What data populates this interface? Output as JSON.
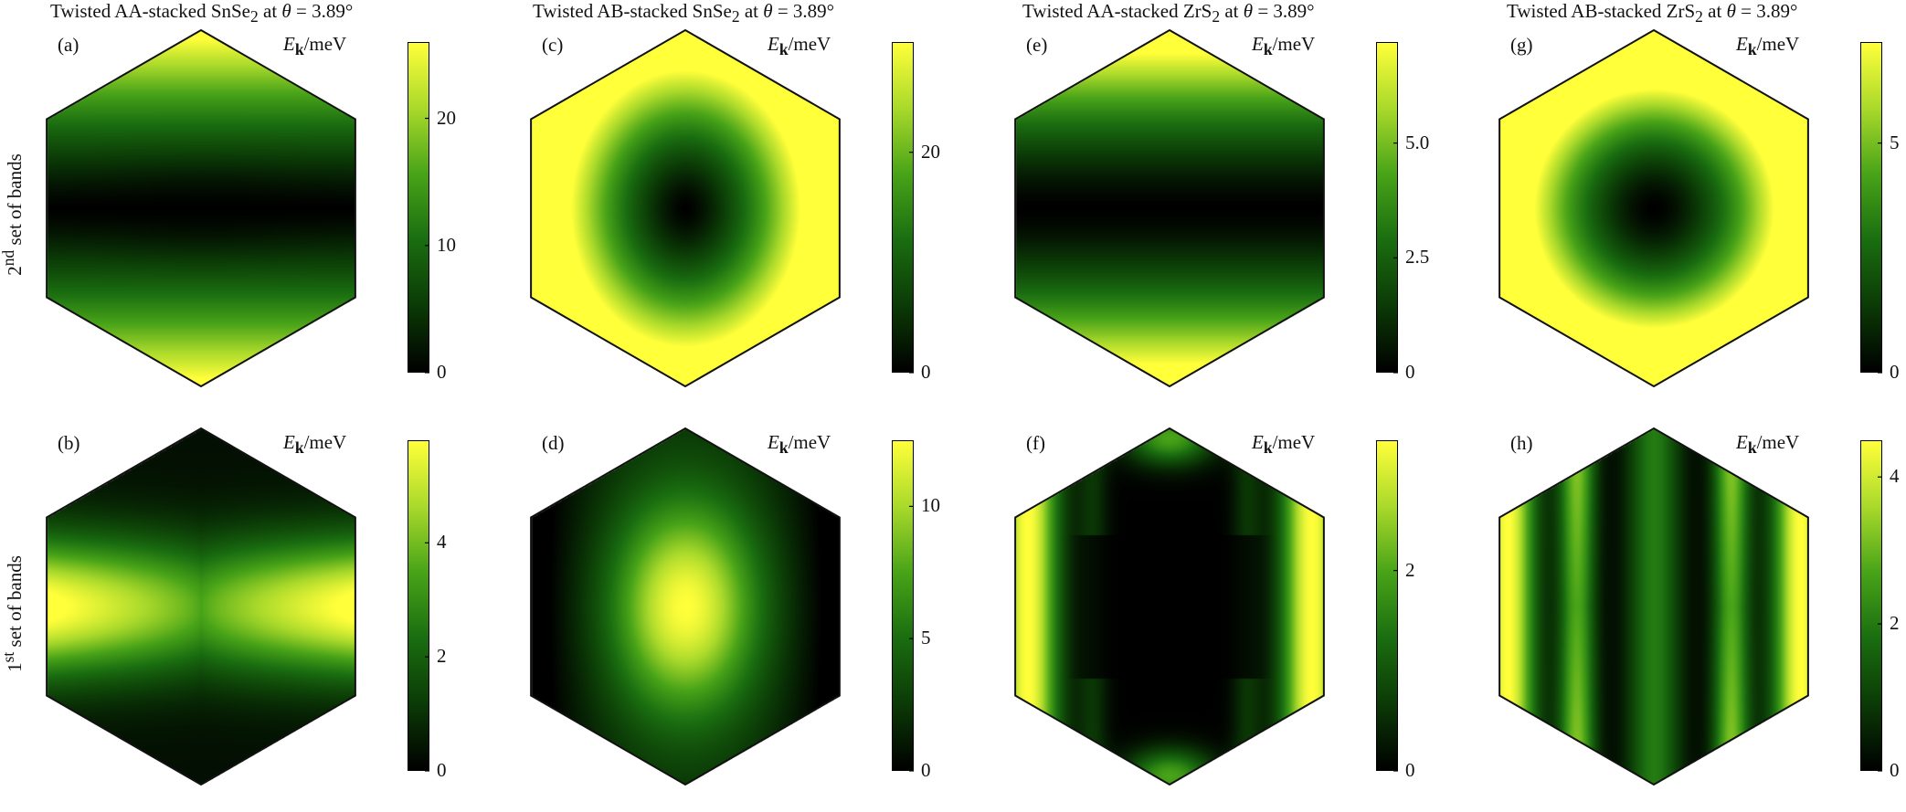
{
  "colormap": [
    "#000000",
    "#0b3a06",
    "#1a6d10",
    "#48a318",
    "#a9d92b",
    "#ffff3a"
  ],
  "col_titles": [
    {
      "pre": "Twisted AA-stacked SnSe",
      "sub": "2",
      "post": " at ",
      "theta": "θ",
      "eq": " = 3.89°"
    },
    {
      "pre": "Twisted AB-stacked SnSe",
      "sub": "2",
      "post": " at ",
      "theta": "θ",
      "eq": " = 3.89°"
    },
    {
      "pre": "Twisted AA-stacked ZrS",
      "sub": "2",
      "post": " at ",
      "theta": "θ",
      "eq": " = 3.89°"
    },
    {
      "pre": "Twisted AB-stacked ZrS",
      "sub": "2",
      "post": " at ",
      "theta": "θ",
      "eq": " = 3.89°"
    }
  ],
  "row_labels": [
    {
      "num": "2",
      "sup": "nd",
      "text": " set of bands"
    },
    {
      "num": "1",
      "sup": "st",
      "text": " set of bands"
    }
  ],
  "colorbar_title": {
    "var": "E",
    "sub": "k",
    "unit": "/meV"
  },
  "chart_data": [
    {
      "type": "heatmap",
      "panel": "(a)",
      "pattern": "a",
      "cmin": 0,
      "cmax": 26,
      "ticks": [
        {
          "value": 0,
          "label": "0"
        },
        {
          "value": 10,
          "label": "10"
        },
        {
          "value": 20,
          "label": "20"
        }
      ]
    },
    {
      "type": "heatmap",
      "panel": "(b)",
      "pattern": "b",
      "cmin": 0,
      "cmax": 5.8,
      "ticks": [
        {
          "value": 0,
          "label": "0"
        },
        {
          "value": 2,
          "label": "2"
        },
        {
          "value": 4,
          "label": "4"
        }
      ]
    },
    {
      "type": "heatmap",
      "panel": "(c)",
      "pattern": "c",
      "cmin": 0,
      "cmax": 30,
      "ticks": [
        {
          "value": 0,
          "label": "0"
        },
        {
          "value": 20,
          "label": "20"
        }
      ]
    },
    {
      "type": "heatmap",
      "panel": "(d)",
      "pattern": "d",
      "cmin": 0,
      "cmax": 12.5,
      "ticks": [
        {
          "value": 0,
          "label": "0"
        },
        {
          "value": 5,
          "label": "5"
        },
        {
          "value": 10,
          "label": "10"
        }
      ]
    },
    {
      "type": "heatmap",
      "panel": "(e)",
      "pattern": "e",
      "cmin": 0,
      "cmax": 7.2,
      "ticks": [
        {
          "value": 0,
          "label": "0"
        },
        {
          "value": 2.5,
          "label": "2.5"
        },
        {
          "value": 5.0,
          "label": "5.0"
        }
      ]
    },
    {
      "type": "heatmap",
      "panel": "(f)",
      "pattern": "f",
      "cmin": 0,
      "cmax": 3.3,
      "ticks": [
        {
          "value": 0,
          "label": "0"
        },
        {
          "value": 2,
          "label": "2"
        }
      ]
    },
    {
      "type": "heatmap",
      "panel": "(g)",
      "pattern": "g",
      "cmin": 0,
      "cmax": 7.2,
      "ticks": [
        {
          "value": 0,
          "label": "0"
        },
        {
          "value": 5,
          "label": "5"
        }
      ]
    },
    {
      "type": "heatmap",
      "panel": "(h)",
      "pattern": "h",
      "cmin": 0,
      "cmax": 4.5,
      "ticks": [
        {
          "value": 0,
          "label": "0"
        },
        {
          "value": 2,
          "label": "2"
        },
        {
          "value": 4,
          "label": "4"
        }
      ]
    }
  ]
}
